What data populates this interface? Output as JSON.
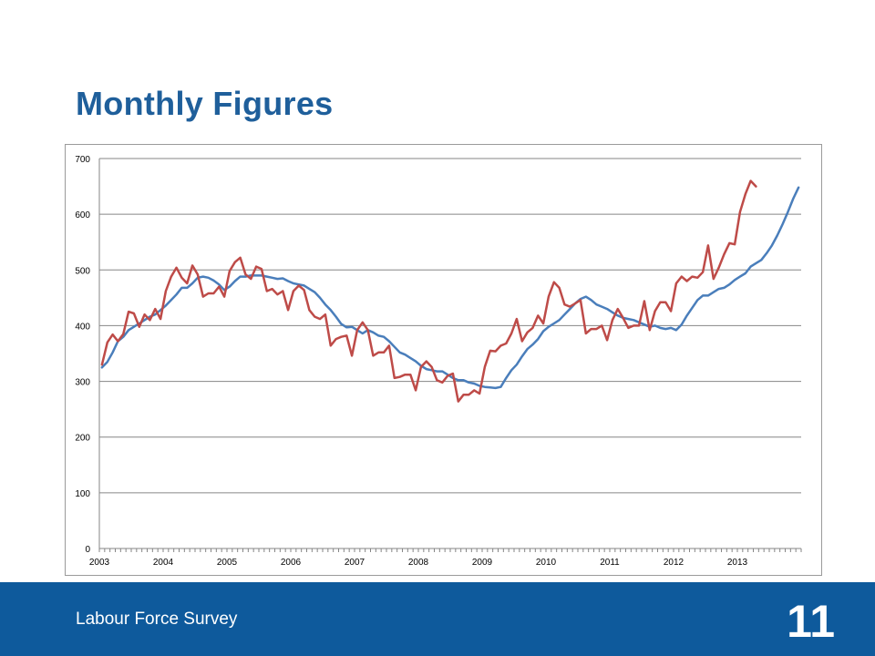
{
  "slide": {
    "title": "Monthly Figures",
    "footer_label": "Labour Force Survey",
    "page_number": "11",
    "footer_color": "#0e5a9c",
    "title_color": "#1f5f9b"
  },
  "chart_data": {
    "type": "line",
    "title": "",
    "xlabel": "",
    "ylabel": "",
    "ylim": [
      0,
      700
    ],
    "yticks": [
      0,
      100,
      200,
      300,
      400,
      500,
      600,
      700
    ],
    "xticks": [
      "2003",
      "2004",
      "2005",
      "2006",
      "2007",
      "2008",
      "2009",
      "2010",
      "2011",
      "2012",
      "2013"
    ],
    "grid": true,
    "legend": "none",
    "x_start": "2003-01",
    "x_frequency": "monthly",
    "series": [
      {
        "color": "#4a7ebb",
        "values": [
          325,
          335,
          352,
          372,
          380,
          392,
          398,
          404,
          410,
          416,
          420,
          428,
          436,
          446,
          456,
          468,
          468,
          476,
          486,
          488,
          486,
          481,
          474,
          464,
          470,
          480,
          488,
          488,
          490,
          490,
          490,
          488,
          486,
          484,
          485,
          480,
          476,
          474,
          472,
          466,
          460,
          450,
          438,
          428,
          416,
          403,
          397,
          398,
          392,
          386,
          392,
          388,
          382,
          380,
          372,
          362,
          352,
          348,
          342,
          336,
          328,
          322,
          320,
          318,
          318,
          312,
          306,
          302,
          302,
          298,
          296,
          292,
          290,
          289,
          288,
          290,
          306,
          320,
          330,
          345,
          358,
          366,
          376,
          390,
          398,
          404,
          410,
          420,
          430,
          440,
          448,
          452,
          446,
          438,
          434,
          430,
          424,
          418,
          414,
          412,
          410,
          406,
          402,
          398,
          400,
          396,
          394,
          396,
          392,
          402,
          418,
          432,
          446,
          454,
          454,
          460,
          466,
          468,
          474,
          482,
          488,
          494,
          506,
          512,
          518,
          530,
          544,
          562,
          582,
          604,
          628,
          648
        ]
      },
      {
        "color": "#be4b48",
        "values": [
          330,
          370,
          384,
          372,
          385,
          425,
          422,
          398,
          420,
          410,
          430,
          412,
          462,
          488,
          504,
          486,
          476,
          508,
          492,
          452,
          458,
          458,
          470,
          452,
          498,
          514,
          522,
          492,
          484,
          506,
          502,
          462,
          466,
          456,
          462,
          428,
          462,
          472,
          464,
          428,
          416,
          412,
          420,
          364,
          376,
          380,
          382,
          346,
          392,
          406,
          392,
          346,
          352,
          352,
          364,
          306,
          308,
          312,
          312,
          284,
          326,
          336,
          326,
          302,
          298,
          310,
          314,
          264,
          276,
          276,
          284,
          278,
          326,
          355,
          354,
          364,
          368,
          386,
          412,
          372,
          388,
          396,
          418,
          404,
          452,
          478,
          468,
          438,
          434,
          440,
          446,
          386,
          394,
          394,
          400,
          374,
          410,
          430,
          414,
          396,
          400,
          400,
          444,
          392,
          426,
          442,
          442,
          426,
          476,
          488,
          480,
          488,
          486,
          496,
          544,
          484,
          504,
          528,
          548,
          546,
          604,
          636,
          660,
          650
        ]
      }
    ]
  }
}
